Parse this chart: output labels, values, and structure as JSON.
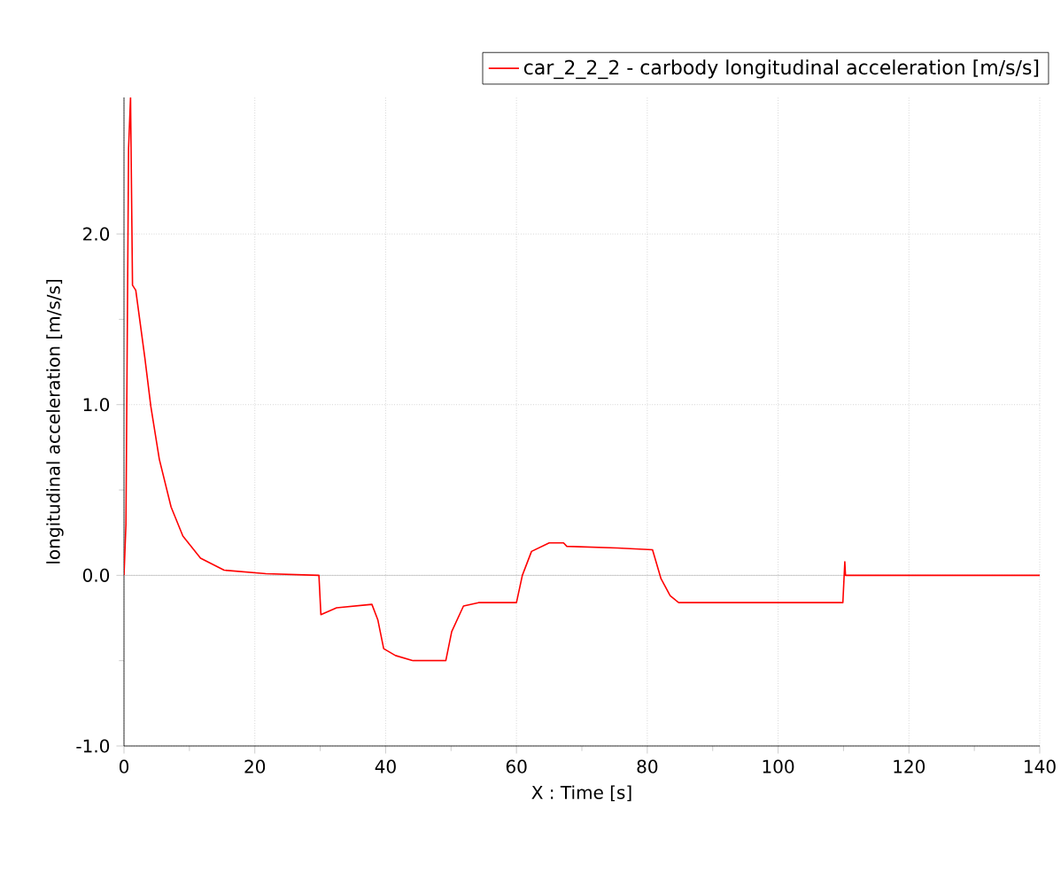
{
  "chart_data": {
    "type": "line",
    "xlabel": "X : Time [s]",
    "ylabel": "longitudinal acceleration [m/s/s]",
    "xlim": [
      0,
      140
    ],
    "ylim": [
      -1,
      2.8
    ],
    "xticks": [
      0,
      20,
      40,
      60,
      80,
      100,
      120,
      140
    ],
    "yticks": [
      {
        "value": -1,
        "label": "-1.0"
      },
      {
        "value": 0,
        "label": "0.0"
      },
      {
        "value": 1,
        "label": "1.0"
      },
      {
        "value": 2,
        "label": "2.0"
      }
    ],
    "grid": true,
    "legend": "top right",
    "marker": "none",
    "line_style": "solid",
    "series": [
      {
        "name": "car_2_2_2 - carbody longitudinal acceleration [m/s/s]",
        "color": "#ff0000",
        "x": [
          0,
          0.3,
          0.7,
          1.0,
          1.3,
          1.8,
          3.2,
          4.1,
          5.4,
          7.2,
          9.0,
          11.7,
          15.3,
          21.7,
          29.8,
          30.1,
          32.5,
          37.9,
          38.8,
          39.7,
          41.5,
          44.2,
          49.2,
          50.1,
          51.9,
          54.2,
          60.0,
          60.9,
          62.3,
          65.0,
          67.2,
          67.7,
          75.4,
          80.8,
          82.1,
          83.5,
          84.8,
          109.9,
          110.2,
          110.3,
          140
        ],
        "values": [
          0,
          0.3,
          2.5,
          2.8,
          1.7,
          1.67,
          1.27,
          0.99,
          0.68,
          0.4,
          0.23,
          0.1,
          0.03,
          0.01,
          0,
          -0.23,
          -0.19,
          -0.17,
          -0.26,
          -0.43,
          -0.47,
          -0.5,
          -0.5,
          -0.33,
          -0.18,
          -0.16,
          -0.16,
          0,
          0.14,
          0.19,
          0.19,
          0.17,
          0.16,
          0.15,
          -0.02,
          -0.12,
          -0.16,
          -0.16,
          0.08,
          0,
          0
        ]
      }
    ]
  }
}
